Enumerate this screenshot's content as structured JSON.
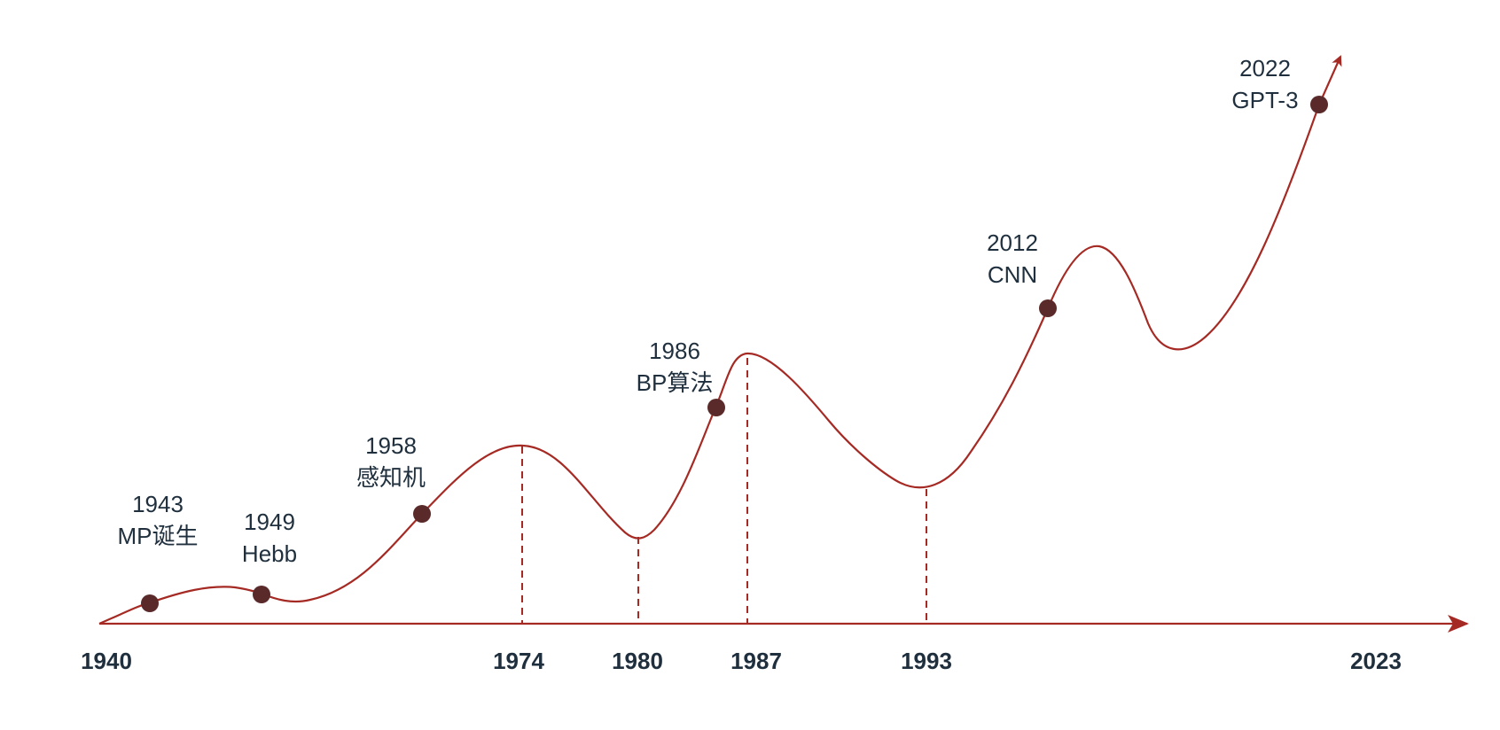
{
  "colors": {
    "curve": "#a52a24",
    "axis": "#a52a24",
    "marker": "#5a2a2a",
    "text": "#1f2f3d"
  },
  "axis": {
    "start_label": "1940",
    "end_label": "2023",
    "tick_labels": [
      "1974",
      "1980",
      "1987",
      "1993"
    ]
  },
  "events": [
    {
      "year": "1943",
      "label": "MP诞生"
    },
    {
      "year": "1949",
      "label": "Hebb"
    },
    {
      "year": "1958",
      "label": "感知机"
    },
    {
      "year": "1986",
      "label": "BP算法"
    },
    {
      "year": "2012",
      "label": "CNN"
    },
    {
      "year": "2022",
      "label": "GPT-3"
    }
  ]
}
